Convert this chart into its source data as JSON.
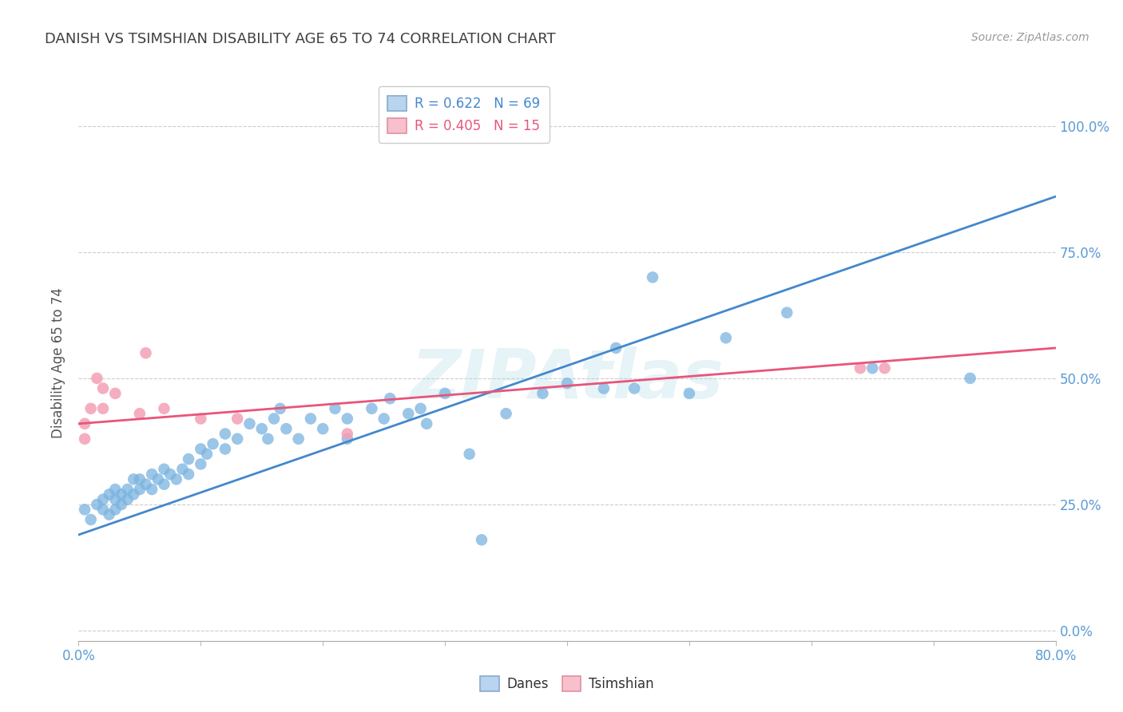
{
  "title": "DANISH VS TSIMSHIAN DISABILITY AGE 65 TO 74 CORRELATION CHART",
  "source": "Source: ZipAtlas.com",
  "ylabel": "Disability Age 65 to 74",
  "xlim": [
    0.0,
    0.8
  ],
  "ylim": [
    -0.02,
    1.08
  ],
  "x_tick_positions": [
    0.0,
    0.1,
    0.2,
    0.3,
    0.4,
    0.5,
    0.6,
    0.7,
    0.8
  ],
  "x_tick_labels": [
    "0.0%",
    "",
    "",
    "",
    "",
    "",
    "",
    "",
    "80.0%"
  ],
  "y_tick_positions": [
    0.0,
    0.25,
    0.5,
    0.75,
    1.0
  ],
  "y_tick_labels_right": [
    "0.0%",
    "25.0%",
    "50.0%",
    "75.0%",
    "100.0%"
  ],
  "danes_R": 0.622,
  "danes_N": 69,
  "tsimshian_R": 0.405,
  "tsimshian_N": 15,
  "danes_color": "#7ab3e0",
  "tsimshian_color": "#f4a0b5",
  "trendline_danes_color": "#4488cc",
  "trendline_tsimshian_color": "#e8557a",
  "danes_trendline_x": [
    0.0,
    0.8
  ],
  "danes_trendline_y": [
    0.19,
    0.86
  ],
  "tsimshian_trendline_x": [
    0.0,
    0.8
  ],
  "tsimshian_trendline_y": [
    0.41,
    0.56
  ],
  "grid_color": "#cccccc",
  "background_color": "#ffffff",
  "title_color": "#404040",
  "tick_label_color": "#5b9bd5",
  "watermark": "ZIPAtlas",
  "danes_x": [
    0.005,
    0.01,
    0.015,
    0.02,
    0.02,
    0.025,
    0.025,
    0.03,
    0.03,
    0.03,
    0.035,
    0.035,
    0.04,
    0.04,
    0.045,
    0.045,
    0.05,
    0.05,
    0.055,
    0.06,
    0.06,
    0.065,
    0.07,
    0.07,
    0.075,
    0.08,
    0.085,
    0.09,
    0.09,
    0.1,
    0.1,
    0.105,
    0.11,
    0.12,
    0.12,
    0.13,
    0.14,
    0.15,
    0.155,
    0.16,
    0.165,
    0.17,
    0.18,
    0.19,
    0.2,
    0.21,
    0.22,
    0.22,
    0.24,
    0.25,
    0.255,
    0.27,
    0.28,
    0.285,
    0.3,
    0.32,
    0.33,
    0.35,
    0.38,
    0.4,
    0.43,
    0.44,
    0.455,
    0.47,
    0.5,
    0.53,
    0.58,
    0.65,
    0.73
  ],
  "danes_y": [
    0.24,
    0.22,
    0.25,
    0.26,
    0.24,
    0.23,
    0.27,
    0.24,
    0.26,
    0.28,
    0.25,
    0.27,
    0.26,
    0.28,
    0.27,
    0.3,
    0.28,
    0.3,
    0.29,
    0.28,
    0.31,
    0.3,
    0.29,
    0.32,
    0.31,
    0.3,
    0.32,
    0.34,
    0.31,
    0.33,
    0.36,
    0.35,
    0.37,
    0.36,
    0.39,
    0.38,
    0.41,
    0.4,
    0.38,
    0.42,
    0.44,
    0.4,
    0.38,
    0.42,
    0.4,
    0.44,
    0.42,
    0.38,
    0.44,
    0.42,
    0.46,
    0.43,
    0.44,
    0.41,
    0.47,
    0.35,
    0.18,
    0.43,
    0.47,
    0.49,
    0.48,
    0.56,
    0.48,
    0.7,
    0.47,
    0.58,
    0.63,
    0.52,
    0.5
  ],
  "tsimshian_x": [
    0.005,
    0.005,
    0.01,
    0.015,
    0.02,
    0.02,
    0.03,
    0.05,
    0.055,
    0.07,
    0.1,
    0.13,
    0.22,
    0.64,
    0.66
  ],
  "tsimshian_y": [
    0.38,
    0.41,
    0.44,
    0.5,
    0.48,
    0.44,
    0.47,
    0.43,
    0.55,
    0.44,
    0.42,
    0.42,
    0.39,
    0.52,
    0.52
  ]
}
